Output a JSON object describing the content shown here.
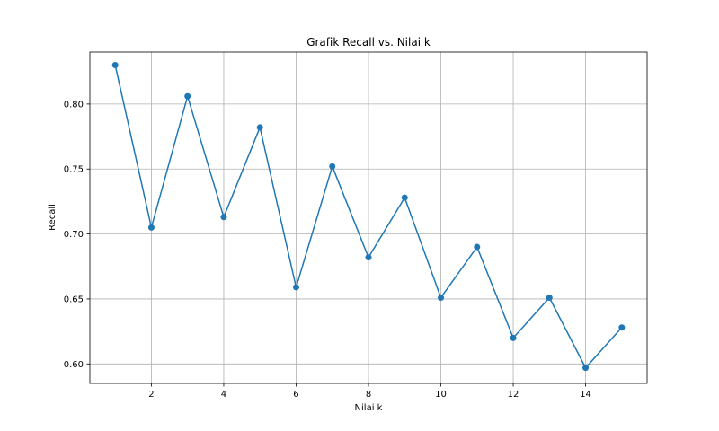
{
  "chart_data": {
    "type": "line",
    "title": "Grafik Recall vs. Nilai k",
    "xlabel": "Nilai k",
    "ylabel": "Recall",
    "xlim": [
      0.3,
      15.7
    ],
    "ylim": [
      0.585,
      0.84
    ],
    "xticks": [
      2,
      4,
      6,
      8,
      10,
      12,
      14
    ],
    "yticks": [
      0.6,
      0.65,
      0.7,
      0.75,
      0.8
    ],
    "grid": true,
    "color": "#1f77b4",
    "series": [
      {
        "x": [
          1,
          2,
          3,
          4,
          5,
          6,
          7,
          8,
          9,
          10,
          11,
          12,
          13,
          14,
          15
        ],
        "values": [
          0.83,
          0.705,
          0.806,
          0.713,
          0.782,
          0.659,
          0.752,
          0.682,
          0.728,
          0.651,
          0.69,
          0.62,
          0.651,
          0.597,
          0.628
        ]
      }
    ]
  }
}
